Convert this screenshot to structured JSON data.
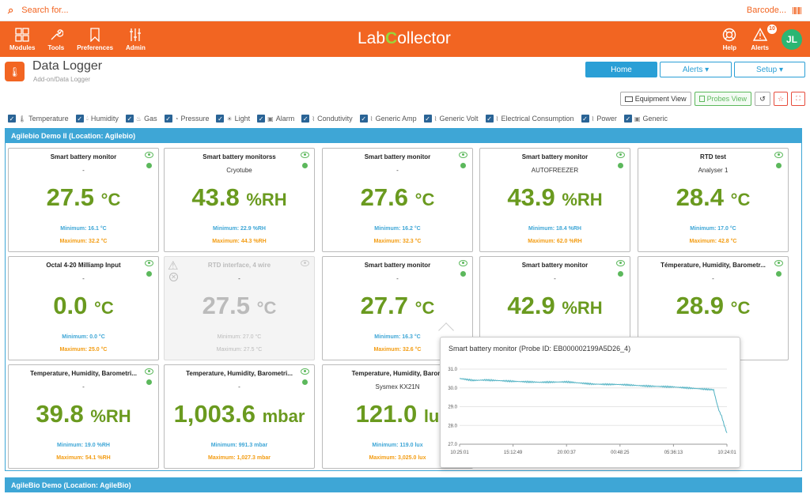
{
  "search": {
    "placeholder": "Search for...",
    "barcode_label": "Barcode..."
  },
  "nav": {
    "items": [
      {
        "label": "Modules",
        "icon": "grid-icon"
      },
      {
        "label": "Tools",
        "icon": "wrench-icon"
      },
      {
        "label": "Preferences",
        "icon": "bookmark-icon"
      },
      {
        "label": "Admin",
        "icon": "sliders-icon"
      }
    ],
    "logo_left": "Lab",
    "logo_mid": "C",
    "logo_right": "ollector",
    "help_label": "Help",
    "alerts_label": "Alerts",
    "alerts_count": "10",
    "user_initials": "JL"
  },
  "header": {
    "title": "Data Logger",
    "breadcrumb": "Add-on/Data Logger",
    "tabs": [
      "Home",
      "Alerts ▾",
      "Setup ▾"
    ],
    "equipment_view": "Equipment View",
    "probes_view": "Probes View"
  },
  "filters": [
    "Temperature",
    "Humidity",
    "Gas",
    "Pressure",
    "Light",
    "Alarm",
    "Condutivity",
    "Generic Amp",
    "Generic Volt",
    "Electrical Consumption",
    "Power",
    "Generic"
  ],
  "locations": {
    "first": "Agilebio Demo II (Location: Agilebio)",
    "second": "AgileBio Demo (Location: AgileBio)"
  },
  "cards": [
    {
      "title": "Smart battery monitor",
      "sub": "-",
      "value": "27.5",
      "unit": "°C",
      "min": "Minimum: 16.1 °C",
      "max": "Maximum: 32.2 °C"
    },
    {
      "title": "Smart battery monitorss",
      "sub": "Cryotube",
      "value": "43.8",
      "unit": "%RH",
      "min": "Minimum: 22.9 %RH",
      "max": "Maximum: 44.3 %RH"
    },
    {
      "title": "Smart battery monitor",
      "sub": "-",
      "value": "27.6",
      "unit": "°C",
      "min": "Minimum: 16.2 °C",
      "max": "Maximum: 32.3 °C"
    },
    {
      "title": "Smart battery monitor",
      "sub": "AUTOFREEZER",
      "value": "43.9",
      "unit": "%RH",
      "min": "Minimum: 18.4 %RH",
      "max": "Maximum: 62.0 %RH"
    },
    {
      "title": "RTD test",
      "sub": "Analyser 1",
      "value": "28.4",
      "unit": "°C",
      "min": "Minimum: 17.0 °C",
      "max": "Maximum: 42.8 °C"
    },
    {
      "title": "Octal 4-20 Milliamp Input",
      "sub": "-",
      "value": "0.0",
      "unit": "°C",
      "min": "Minimum: 0.0 °C",
      "max": "Maximum: 25.0 °C"
    },
    {
      "title": "RTD interface, 4 wire",
      "sub": "-",
      "value": "27.5",
      "unit": "°C",
      "min": "Minimum: 27.0 °C",
      "max": "Maximum: 27.5 °C"
    },
    {
      "title": "Smart battery monitor",
      "sub": "-",
      "value": "27.7",
      "unit": "°C",
      "min": "Minimum: 16.3 °C",
      "max": "Maximum: 32.6 °C"
    },
    {
      "title": "Smart battery monitor",
      "sub": "-",
      "value": "42.9",
      "unit": "%RH",
      "min": "",
      "max": ""
    },
    {
      "title": "Témperature, Humidity, Barometr...",
      "sub": "-",
      "value": "28.9",
      "unit": "°C",
      "min": "",
      "max": ""
    },
    {
      "title": "Temperature, Humidity, Barometri...",
      "sub": "-",
      "value": "39.8",
      "unit": "%RH",
      "min": "Minimum: 19.0 %RH",
      "max": "Maximum: 54.1 %RH"
    },
    {
      "title": "Temperature, Humidity, Barometri...",
      "sub": "-",
      "value": "1,003.6",
      "unit": "mbar",
      "min": "Minimum: 991.3 mbar",
      "max": "Maximum: 1,027.3 mbar"
    },
    {
      "title": "Temperature, Humidity, Barom",
      "sub": "Sysmex KX21N",
      "value": "121.0",
      "unit": "lu",
      "min": "Minimum: 119.0 lux",
      "max": "Maximum: 3,025.0 lux"
    }
  ],
  "popup": {
    "title": "Smart battery monitor (Probe ID: EB000002199A5D26_4)"
  },
  "chart_data": {
    "type": "line",
    "title": "Smart battery monitor (Probe ID: EB000002199A5D26_4)",
    "xticks": [
      "10:25:01",
      "15:12:49",
      "20:00:37",
      "00:48:25",
      "05:36:13",
      "10:24:01"
    ],
    "yticks": [
      "27.0",
      "28.0",
      "29.0",
      "30.0",
      "31.0"
    ],
    "ylim": [
      27.0,
      31.0
    ],
    "x": [
      0,
      0.05,
      0.1,
      0.2,
      0.3,
      0.4,
      0.5,
      0.6,
      0.7,
      0.8,
      0.9,
      0.95,
      0.96,
      0.97,
      0.98,
      0.99,
      1.0
    ],
    "values": [
      30.5,
      30.4,
      30.42,
      30.35,
      30.3,
      30.32,
      30.2,
      30.18,
      30.1,
      30.05,
      29.95,
      29.9,
      29.3,
      28.8,
      28.5,
      28.0,
      27.6
    ],
    "color": "#4fb1c2"
  }
}
